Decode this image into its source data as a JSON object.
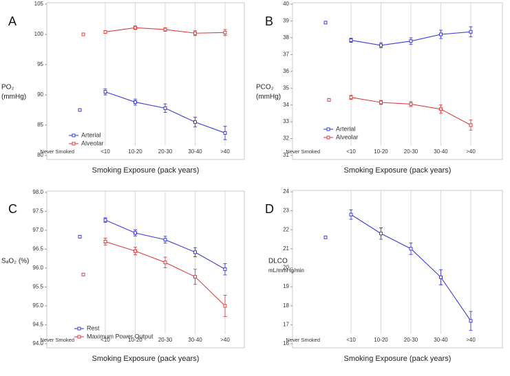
{
  "chart_data": [
    {
      "type": "line",
      "panel": "A",
      "ylabel": "PO₂",
      "yunit": "(mmHg)",
      "xlabel": "Smoking Exposure (pack years)",
      "categories": [
        "Never Smoked",
        "<10",
        "10-20",
        "20-30",
        "30-40",
        ">40"
      ],
      "series": [
        {
          "name": "Arterial",
          "color": "#3b3bdc",
          "values": [
            87.5,
            90.5,
            88.8,
            87.8,
            85.5,
            83.7
          ],
          "errors": [
            0.15,
            0.5,
            0.5,
            0.7,
            0.8,
            1.1
          ]
        },
        {
          "name": "Alveolar",
          "color": "#e03c3c",
          "values": [
            100.0,
            100.4,
            101.1,
            100.8,
            100.2,
            100.3
          ],
          "errors": [
            0.1,
            0.2,
            0.3,
            0.3,
            0.4,
            0.5
          ]
        }
      ],
      "ylim": [
        80,
        105
      ],
      "yticks": [
        80,
        85,
        90,
        95,
        100,
        105
      ],
      "legend": true
    },
    {
      "type": "line",
      "panel": "B",
      "ylabel": "PCO₂",
      "yunit": "(mmHg)",
      "xlabel": "Smoking Exposure (pack years)",
      "categories": [
        "Never Smoked",
        "<10",
        "10-20",
        "20-30",
        "30-40",
        ">40"
      ],
      "series": [
        {
          "name": "Arterial",
          "color": "#3b3bdc",
          "values": [
            38.9,
            37.85,
            37.55,
            37.8,
            38.2,
            38.35
          ],
          "errors": [
            0.05,
            0.12,
            0.15,
            0.2,
            0.25,
            0.3
          ]
        },
        {
          "name": "Alveolar",
          "color": "#e03c3c",
          "values": [
            34.3,
            34.45,
            34.15,
            34.05,
            33.75,
            32.8
          ],
          "errors": [
            0.05,
            0.12,
            0.12,
            0.15,
            0.25,
            0.3
          ]
        }
      ],
      "ylim": [
        31,
        40
      ],
      "yticks": [
        31,
        32,
        33,
        34,
        35,
        36,
        37,
        38,
        39,
        40
      ],
      "legend": true
    },
    {
      "type": "line",
      "panel": "C",
      "ylabel": "SₐO₂ (%)",
      "xlabel": "Smoking Exposure (pack years)",
      "categories": [
        "Never Smoked",
        "<10",
        "10-20",
        "20-30",
        "30-40",
        ">40"
      ],
      "series": [
        {
          "name": "Rest",
          "color": "#3b3bdc",
          "values": [
            96.83,
            97.27,
            96.93,
            96.75,
            96.42,
            95.97
          ],
          "errors": [
            0.02,
            0.06,
            0.08,
            0.09,
            0.12,
            0.15
          ]
        },
        {
          "name": "Maximum Power Output",
          "color": "#e03c3c",
          "values": [
            95.83,
            96.7,
            96.45,
            96.15,
            95.77,
            95.0
          ],
          "errors": [
            0.03,
            0.09,
            0.1,
            0.14,
            0.2,
            0.28
          ]
        }
      ],
      "ylim": [
        94,
        98
      ],
      "yticks": [
        {
          "value": 94,
          "label": "94.0"
        },
        {
          "value": 94.5,
          "label": "94.5"
        },
        {
          "value": 95,
          "label": "95.0"
        },
        {
          "value": 95.5,
          "label": "95.5"
        },
        {
          "value": 96,
          "label": "96.0"
        },
        {
          "value": 96.5,
          "label": "96.5"
        },
        {
          "value": 97,
          "label": "97.0"
        },
        {
          "value": 97.5,
          "label": "97.5"
        },
        {
          "value": 98,
          "label": "98.0"
        }
      ],
      "legend": true
    },
    {
      "type": "line",
      "panel": "D",
      "ylabel": "DLCO",
      "yunit": "mL/mmHg/min",
      "xlabel": "Smoking Exposure (pack years)",
      "categories": [
        "Never Smoked",
        "<10",
        "10-20",
        "20-30",
        "30-40",
        ">40"
      ],
      "series": [
        {
          "color": "#3b3bdc",
          "values": [
            21.6,
            22.8,
            21.8,
            21.0,
            19.5,
            17.2
          ],
          "errors": [
            0.06,
            0.25,
            0.3,
            0.3,
            0.4,
            0.5
          ]
        }
      ],
      "ylim": [
        16,
        24
      ],
      "yticks": [
        16,
        17,
        18,
        19,
        20,
        21,
        22,
        23,
        24
      ]
    }
  ]
}
